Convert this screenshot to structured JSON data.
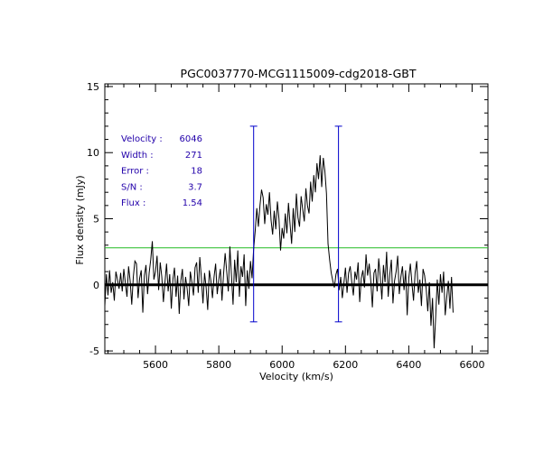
{
  "chart_data": {
    "type": "line",
    "title": "PGC0037770-MCG1115009-cdg2018-GBT",
    "xlabel": "Velocity (km/s)",
    "ylabel": "Flux density (mJy)",
    "xlim": [
      5440,
      6650
    ],
    "ylim": [
      -5.2,
      15.2
    ],
    "xticks": [
      5600,
      5800,
      6000,
      6200,
      6400,
      6600
    ],
    "yticks": [
      -5,
      0,
      5,
      10,
      15
    ],
    "grid": false,
    "baseline": 0,
    "noise_level": 2.8,
    "window_lines": [
      {
        "x": 5910,
        "ymin": -2.8,
        "ymax": 12
      },
      {
        "x": 6178,
        "ymin": -2.8,
        "ymax": 12
      }
    ],
    "stats": [
      {
        "label": "Velocity :",
        "value": "6046"
      },
      {
        "label": "Width    :",
        "value": "271"
      },
      {
        "label": "Error    :",
        "value": "18"
      },
      {
        "label": "S/N      :",
        "value": "3.7"
      },
      {
        "label": "Flux     :",
        "value": "1.54"
      }
    ],
    "spectrum": {
      "name": "flux",
      "x_start": 5440,
      "x_step": 5,
      "values": [
        -1.6,
        0.8,
        -0.8,
        1.1,
        -0.6,
        0.2,
        -1.2,
        1.0,
        0.4,
        -0.3,
        0.9,
        -0.5,
        1.2,
        0.1,
        -0.9,
        1.4,
        0.3,
        -1.5,
        0.6,
        1.8,
        1.6,
        -1.0,
        0.5,
        1.1,
        -2.1,
        0.7,
        1.5,
        -0.7,
        0.9,
        1.9,
        3.3,
        0.4,
        1.0,
        2.2,
        -0.4,
        1.7,
        0.6,
        -1.3,
        0.2,
        1.6,
        -0.5,
        0.8,
        -1.8,
        0.4,
        1.3,
        -0.9,
        0.7,
        -2.2,
        0.3,
        1.2,
        -1.1,
        0.6,
        -0.3,
        -1.6,
        1.0,
        0.2,
        -0.8,
        1.3,
        1.7,
        -0.6,
        2.1,
        0.5,
        -1.4,
        0.9,
        -0.2,
        -1.9,
        1.1,
        0.3,
        -1.0,
        0.6,
        1.6,
        -0.7,
        0.4,
        1.2,
        -1.2,
        0.8,
        2.4,
        1.0,
        -0.5,
        2.9,
        0.7,
        -1.5,
        1.9,
        0.2,
        2.6,
        -0.9,
        1.4,
        0.6,
        2.3,
        -1.6,
        1.1,
        -0.3,
        1.8,
        0.5,
        2.7,
        4.1,
        5.8,
        4.4,
        6.0,
        7.2,
        6.6,
        4.6,
        6.1,
        5.3,
        7.0,
        4.9,
        3.8,
        5.6,
        4.2,
        6.3,
        5.0,
        2.6,
        4.3,
        3.5,
        5.4,
        3.9,
        6.2,
        4.6,
        3.1,
        5.8,
        4.0,
        6.9,
        5.1,
        4.4,
        6.7,
        5.7,
        4.8,
        7.3,
        6.0,
        5.4,
        7.8,
        6.3,
        8.3,
        7.0,
        9.2,
        8.0,
        9.8,
        7.4,
        9.6,
        8.6,
        6.9,
        3.1,
        1.9,
        0.9,
        0.3,
        -0.2,
        0.8,
        1.2,
        -0.4,
        0.6,
        -1.0,
        0.1,
        1.3,
        -0.6,
        0.9,
        1.4,
        0.2,
        -0.8,
        1.0,
        0.4,
        1.7,
        -1.3,
        0.5,
        1.1,
        -0.2,
        2.3,
        0.7,
        1.6,
        0.3,
        -1.7,
        0.9,
        1.2,
        -0.5,
        2.0,
        0.6,
        -1.1,
        1.5,
        0.2,
        2.5,
        -0.9,
        0.8,
        1.9,
        -1.4,
        0.3,
        1.0,
        2.2,
        -0.7,
        0.6,
        1.4,
        -0.4,
        1.1,
        -2.3,
        0.5,
        1.6,
        0.1,
        -1.2,
        0.9,
        1.8,
        -0.6,
        0.4,
        -1.6,
        1.2,
        0.7,
        -0.3,
        -2.0,
        0.2,
        -3.1,
        -1.0,
        -4.8,
        -2.4,
        0.4,
        -1.5,
        0.8,
        -0.6,
        1.0,
        -2.3,
        -0.9,
        0.3,
        -1.8,
        0.6,
        -2.1
      ]
    }
  }
}
